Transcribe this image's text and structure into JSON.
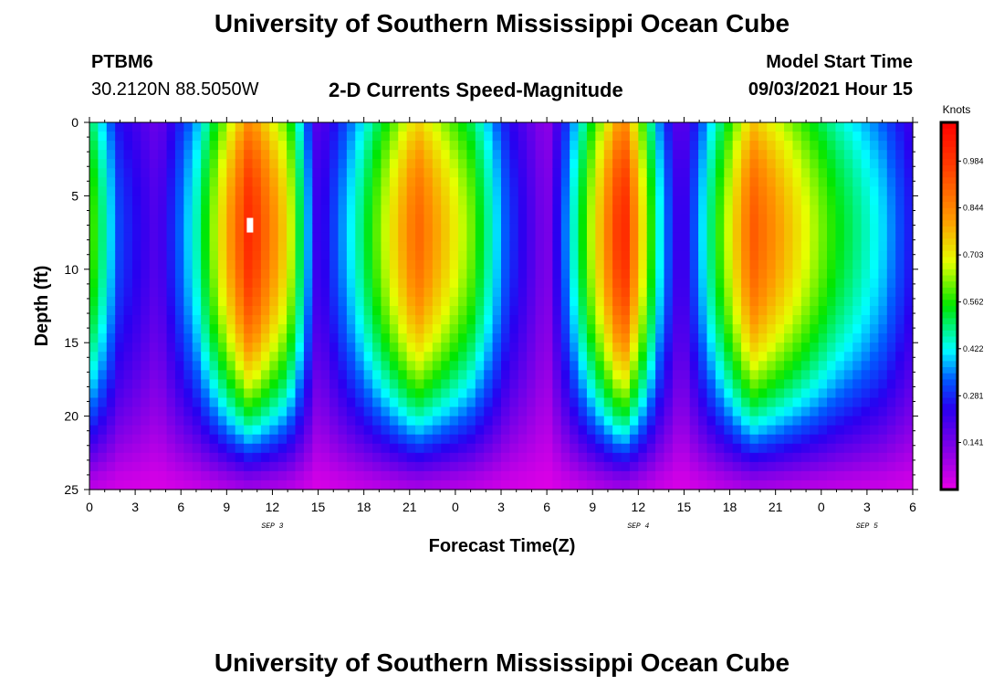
{
  "header": {
    "title": "University of Southern Mississippi Ocean Cube",
    "station": "PTBM6",
    "coords": "30.2120N  88.5050W",
    "model_label": "Model Start Time",
    "model_time": "09/03/2021 Hour 15"
  },
  "footer": {
    "title": "University of Southern Mississippi Ocean Cube"
  },
  "chart_data": {
    "type": "heatmap",
    "title": "2-D Currents Speed-Magnitude",
    "xlabel": "Forecast Time(Z)",
    "ylabel": "Depth (ft)",
    "x_range_hours": [
      0,
      54
    ],
    "ylim": [
      0,
      25
    ],
    "x_tick_labels": [
      "0",
      "3",
      "6",
      "9",
      "12",
      "15",
      "18",
      "21",
      "0",
      "3",
      "6",
      "9",
      "12",
      "15",
      "18",
      "21",
      "0",
      "3",
      "6"
    ],
    "x_day_labels": [
      {
        "label": "SEP 3",
        "hour": 12
      },
      {
        "label": "SEP 4",
        "hour": 36
      },
      {
        "label": "SEP 5",
        "hour": 51
      }
    ],
    "y_ticks": [
      0,
      5,
      10,
      15,
      20,
      25
    ],
    "colorbar": {
      "unit": "Knots",
      "ticks": [
        "0.984",
        "0.844",
        "0.703",
        "0.562",
        "0.422",
        "0.281",
        "0.141"
      ],
      "min": 0.0,
      "max": 1.1
    },
    "surface_speed_by_hour": [
      {
        "hour": 0,
        "speed": 0.62
      },
      {
        "hour": 2,
        "speed": 0.3
      },
      {
        "hour": 4.5,
        "speed": 0.18
      },
      {
        "hour": 7,
        "speed": 0.45
      },
      {
        "hour": 10.5,
        "speed": 1.02
      },
      {
        "hour": 13,
        "speed": 0.72
      },
      {
        "hour": 15,
        "speed": 0.2
      },
      {
        "hour": 17.5,
        "speed": 0.45
      },
      {
        "hour": 21.5,
        "speed": 0.9
      },
      {
        "hour": 25,
        "speed": 0.62
      },
      {
        "hour": 27.5,
        "speed": 0.3
      },
      {
        "hour": 30,
        "speed": 0.12
      },
      {
        "hour": 35,
        "speed": 1.04
      },
      {
        "hour": 37.5,
        "speed": 0.4
      },
      {
        "hour": 38.8,
        "speed": 0.18
      },
      {
        "hour": 40.5,
        "speed": 0.45
      },
      {
        "hour": 43.5,
        "speed": 0.92
      },
      {
        "hour": 49,
        "speed": 0.55
      },
      {
        "hour": 52,
        "speed": 0.4
      },
      {
        "hour": 54,
        "speed": 0.25
      }
    ],
    "annotations": [
      {
        "type": "marker",
        "hour": 10.5,
        "depth_ft": 7
      }
    ]
  }
}
